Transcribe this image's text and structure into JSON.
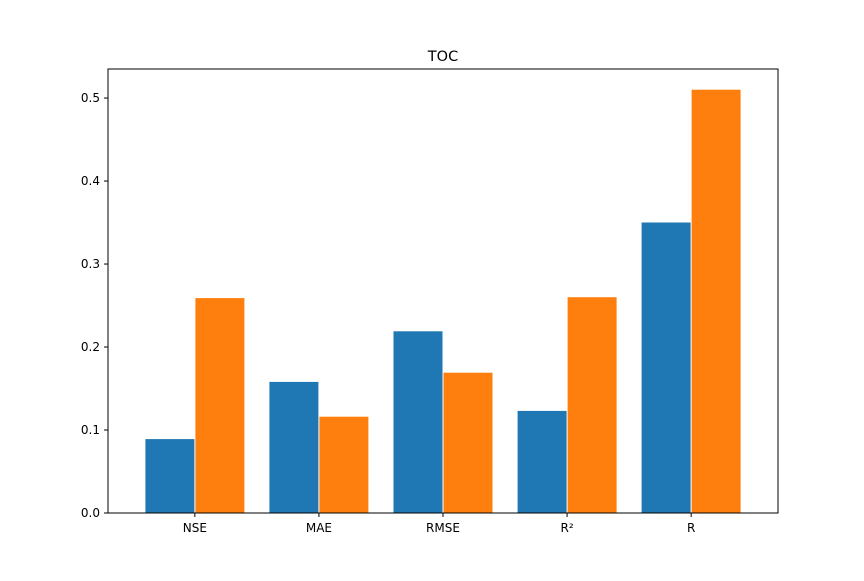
{
  "chart_data": {
    "type": "bar",
    "title": "TOC",
    "xlabel": "",
    "ylabel": "",
    "categories": [
      "NSE",
      "MAE",
      "RMSE",
      "R²",
      "R"
    ],
    "series": [
      {
        "values": [
          0.089,
          0.158,
          0.219,
          0.123,
          0.35
        ],
        "color": "#1f77b4"
      },
      {
        "values": [
          0.259,
          0.116,
          0.169,
          0.26,
          0.51
        ],
        "color": "#ff7f0e"
      }
    ],
    "ylim": [
      0,
      0.535
    ],
    "yticks": [
      {
        "value": 0.0,
        "label": "0.0"
      },
      {
        "value": 0.1,
        "label": "0.1"
      },
      {
        "value": 0.2,
        "label": "0.2"
      },
      {
        "value": 0.3,
        "label": "0.3"
      },
      {
        "value": 0.4,
        "label": "0.4"
      },
      {
        "value": 0.5,
        "label": "0.5"
      }
    ],
    "grid": false,
    "legend": "none"
  }
}
